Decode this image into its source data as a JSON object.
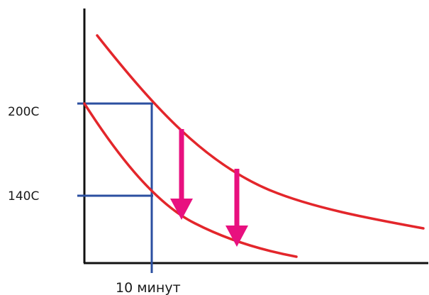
{
  "labels": {
    "temp_high": "200C",
    "temp_low": "140C",
    "time_mark": "10 минут"
  },
  "colors": {
    "axis": "#111111",
    "curve": "#e3262b",
    "guide": "#2b4fa0",
    "arrow": "#e8107f"
  }
}
